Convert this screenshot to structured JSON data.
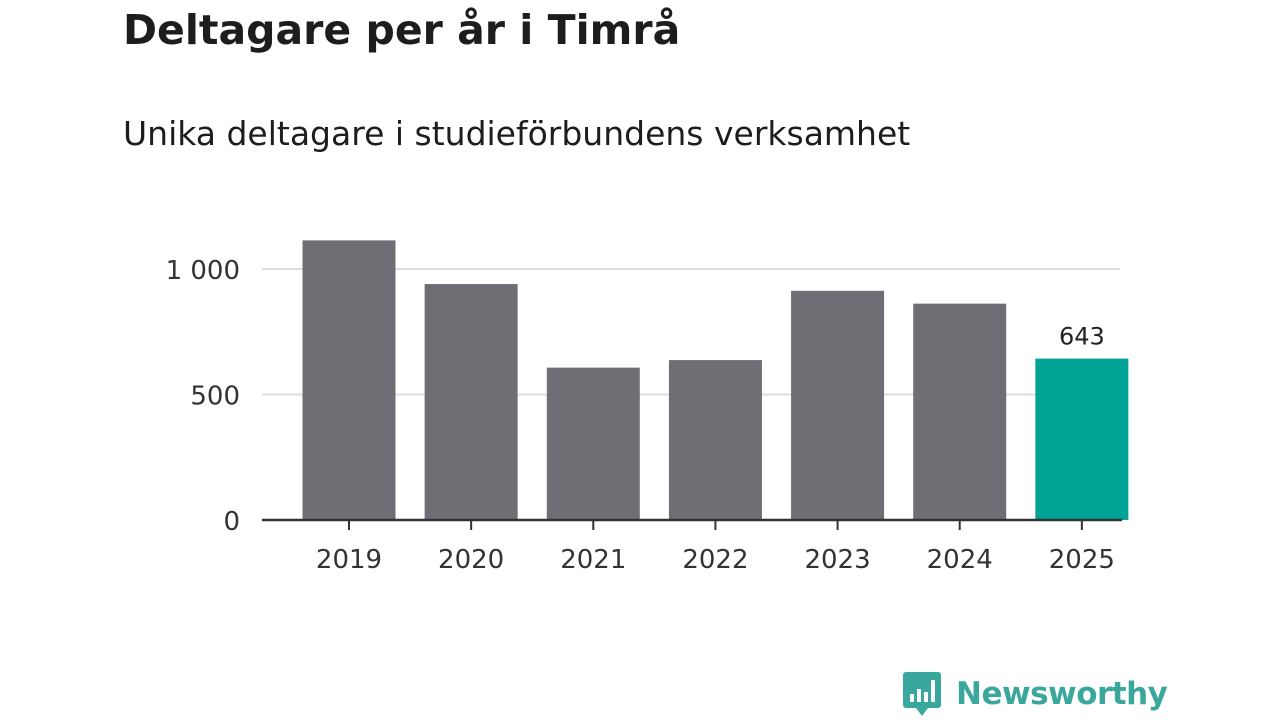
{
  "chart_data": {
    "type": "bar",
    "title": "Deltagare per år i Timrå",
    "subtitle": "Unika deltagare i studieförbundens verksamhet",
    "categories": [
      "2019",
      "2020",
      "2021",
      "2022",
      "2023",
      "2024",
      "2025"
    ],
    "values": [
      1114,
      940,
      607,
      637,
      913,
      862,
      643
    ],
    "highlight_index": 6,
    "data_labels": [
      {
        "index": 6,
        "text": "643"
      }
    ],
    "y_ticks": [
      {
        "value": 0,
        "label": "0"
      },
      {
        "value": 500,
        "label": "500"
      },
      {
        "value": 1000,
        "label": "1 000"
      }
    ],
    "ylim": [
      0,
      1130
    ],
    "grid": true,
    "colors": {
      "bar": "#6f6e74",
      "highlight": "#00a396",
      "grid": "#dddddd",
      "axis": "#333333",
      "text": "#333333"
    }
  },
  "brand": {
    "name": "Newsworthy",
    "color": "#3aa79c",
    "icon": "bar-chart-speech-bubble-icon"
  }
}
